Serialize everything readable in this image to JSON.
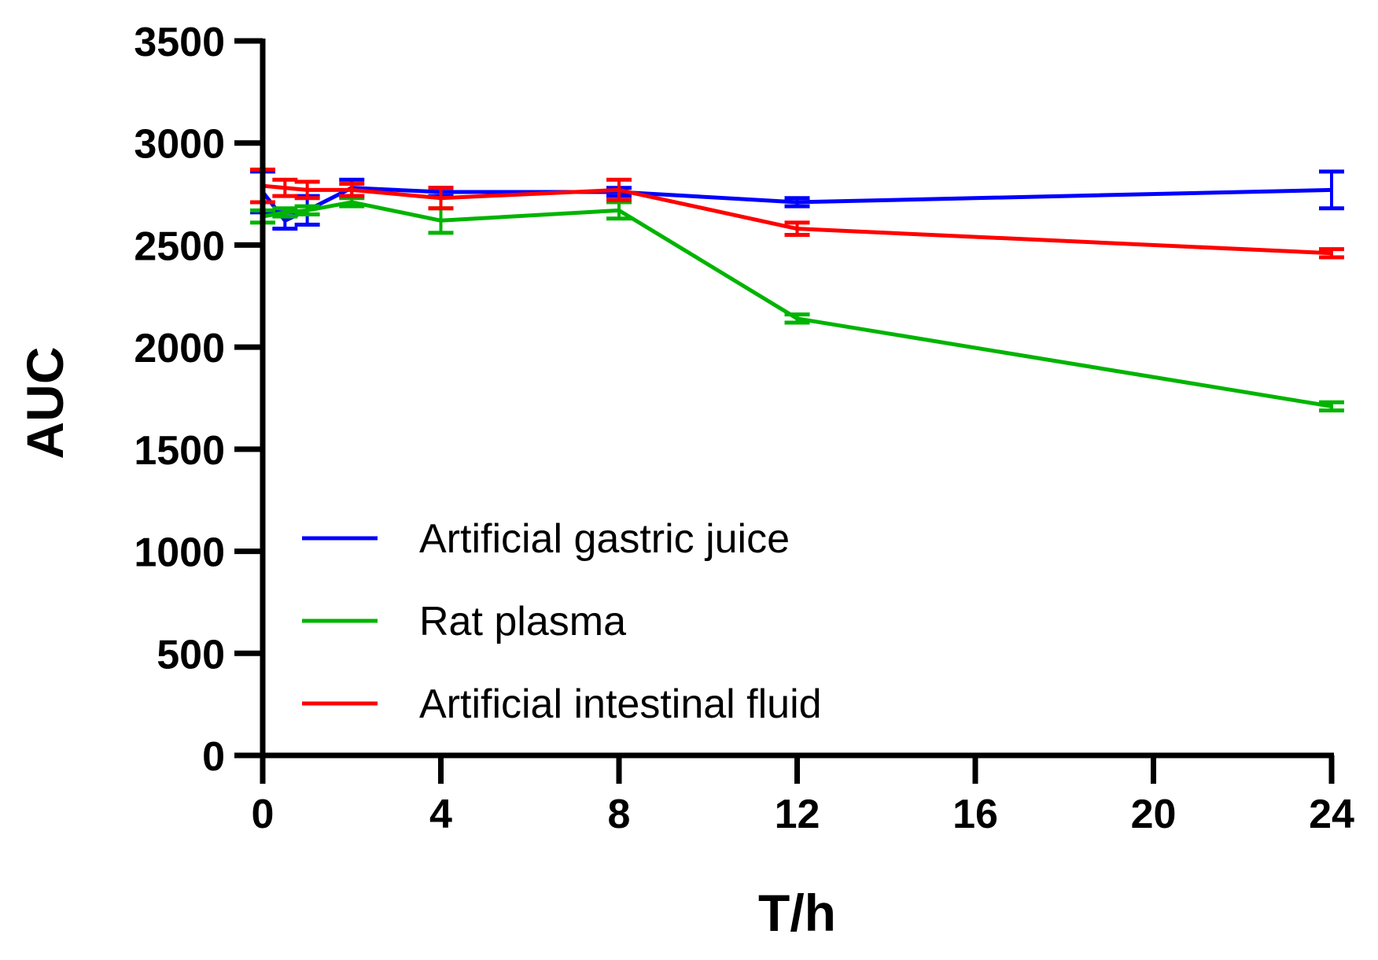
{
  "chart_data": {
    "type": "line",
    "title": "",
    "xlabel": "T/h",
    "ylabel": "AUC",
    "xlim": [
      0,
      24
    ],
    "ylim": [
      0,
      3500
    ],
    "xticks": [
      0,
      4,
      8,
      12,
      16,
      20,
      24
    ],
    "yticks": [
      0,
      500,
      1000,
      1500,
      2000,
      2500,
      3000,
      3500
    ],
    "x": [
      0,
      0.5,
      1,
      2,
      4,
      8,
      12,
      24
    ],
    "legend_position": "center-left",
    "series": [
      {
        "name": "Artificial gastric juice",
        "color": "#0000ff",
        "values": [
          2760,
          2620,
          2670,
          2780,
          2760,
          2760,
          2710,
          2770
        ],
        "errors": [
          100,
          40,
          70,
          40,
          20,
          20,
          20,
          90
        ]
      },
      {
        "name": "Rat plasma",
        "color": "#00b400",
        "values": [
          2640,
          2660,
          2670,
          2710,
          2620,
          2670,
          2140,
          1710
        ],
        "errors": [
          30,
          20,
          20,
          20,
          60,
          40,
          20,
          20
        ]
      },
      {
        "name": "Artificial intestinal fluid",
        "color": "#ff0000",
        "values": [
          2790,
          2780,
          2770,
          2770,
          2730,
          2770,
          2580,
          2460
        ],
        "errors": [
          80,
          40,
          40,
          30,
          50,
          50,
          30,
          20
        ]
      }
    ]
  }
}
